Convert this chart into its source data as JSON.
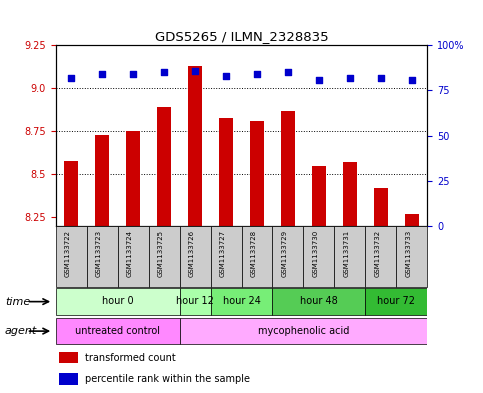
{
  "title": "GDS5265 / ILMN_2328835",
  "samples": [
    "GSM1133722",
    "GSM1133723",
    "GSM1133724",
    "GSM1133725",
    "GSM1133726",
    "GSM1133727",
    "GSM1133728",
    "GSM1133729",
    "GSM1133730",
    "GSM1133731",
    "GSM1133732",
    "GSM1133733"
  ],
  "transformed_count": [
    8.58,
    8.73,
    8.75,
    8.89,
    9.13,
    8.83,
    8.81,
    8.87,
    8.55,
    8.57,
    8.42,
    8.27
  ],
  "percentile_rank": [
    82,
    84,
    84,
    85,
    86,
    83,
    84,
    85,
    81,
    82,
    82,
    81
  ],
  "ylim_left": [
    8.2,
    9.25
  ],
  "ylim_right": [
    0,
    100
  ],
  "yticks_left": [
    8.25,
    8.5,
    8.75,
    9.0,
    9.25
  ],
  "yticks_right": [
    0,
    25,
    50,
    75,
    100
  ],
  "bar_color": "#cc0000",
  "dot_color": "#0000cc",
  "gridline_y": [
    8.5,
    8.75,
    9.0
  ],
  "time_labels": [
    {
      "label": "hour 0",
      "start": 0,
      "end": 3,
      "color": "#ccffcc"
    },
    {
      "label": "hour 12",
      "start": 4,
      "end": 4,
      "color": "#aaffaa"
    },
    {
      "label": "hour 24",
      "start": 5,
      "end": 6,
      "color": "#77ee77"
    },
    {
      "label": "hour 48",
      "start": 7,
      "end": 9,
      "color": "#55cc55"
    },
    {
      "label": "hour 72",
      "start": 10,
      "end": 11,
      "color": "#33bb33"
    }
  ],
  "agent_labels": [
    {
      "label": "untreated control",
      "start": 0,
      "end": 3,
      "color": "#ff88ff"
    },
    {
      "label": "mycophenolic acid",
      "start": 4,
      "end": 11,
      "color": "#ffaaff"
    }
  ],
  "legend_items": [
    {
      "label": "transformed count",
      "color": "#cc0000"
    },
    {
      "label": "percentile rank within the sample",
      "color": "#0000cc"
    }
  ],
  "xlabel_time": "time",
  "xlabel_agent": "agent",
  "bg_color": "#ffffff",
  "plot_bg": "#ffffff",
  "tick_label_color_left": "#cc0000",
  "tick_label_color_right": "#0000cc",
  "sample_box_color": "#cccccc",
  "bar_width": 0.45
}
